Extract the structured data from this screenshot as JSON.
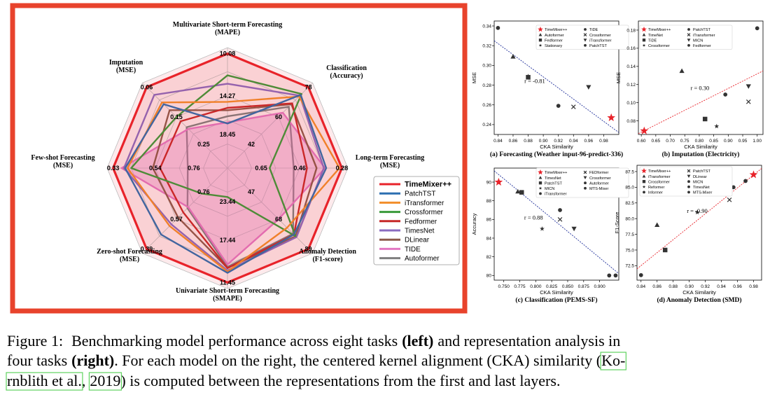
{
  "figure": {
    "caption": {
      "prefix": "Figure 1:",
      "part1": "Benchmarking model performance across eight tasks",
      "left": "(left)",
      "part2": "and representation analysis in",
      "part3": "four tasks",
      "right": "(right)",
      "part4": ". For each model on the right, the centered kernel alignment (CKA) similarity (",
      "cite1a": "Ko-",
      "cite1b": "rnblith et al.",
      "sep": ",",
      "cite2": "2019",
      "part5": ") is computed between the representations from the first and last layers."
    }
  },
  "colors": {
    "frame": "#e8432c",
    "timemixer": "#e8232a",
    "patchtst": "#2c6fb0",
    "itransformer": "#f28e2b",
    "crossformer": "#3a9a3a",
    "fedformer": "#c62828",
    "timesnet": "#8a6cc0",
    "dlinear": "#8c5a4a",
    "tide": "#e377c2",
    "autoformer": "#7f7f7f",
    "regression_blue": "#1f2f9a",
    "regression_red": "#e8232a"
  },
  "chart_data": [
    {
      "type": "radar",
      "axes": [
        {
          "label_lines": [
            "Multivariate Short-term Forecasting",
            "(MAPE)"
          ],
          "ticks": [
            "10.08",
            "14.27",
            "18.45"
          ]
        },
        {
          "label_lines": [
            "Classification",
            "(Accuracy)"
          ],
          "ticks": [
            "78",
            "60",
            "42"
          ]
        },
        {
          "label_lines": [
            "Long-term Forecasting",
            "(MSE)"
          ],
          "ticks": [
            "0.28",
            "0.46",
            "0.65"
          ]
        },
        {
          "label_lines": [
            "Anomaly Detection",
            "(F1-score)"
          ],
          "ticks": [
            "89",
            "68",
            "47"
          ]
        },
        {
          "label_lines": [
            "Univariate Short-term Forecasting",
            "(SMAPE)"
          ],
          "ticks": [
            "11.45",
            "17.44",
            "23.44"
          ]
        },
        {
          "label_lines": [
            "Zero-shot Forecasting",
            "(MSE)"
          ],
          "ticks": [
            "0.39",
            "0.57",
            "0.76"
          ]
        },
        {
          "label_lines": [
            "Few-shot Forecasting",
            "(MSE)"
          ],
          "ticks": [
            "0.33",
            "0.54",
            "0.76"
          ]
        },
        {
          "label_lines": [
            "Imputation",
            "(MSE)"
          ],
          "ticks": [
            "0.06",
            "0.15",
            "0.25"
          ]
        }
      ],
      "series": [
        {
          "name": "TimeMixer++",
          "color_key": "timemixer",
          "values": [
            0.95,
            0.95,
            0.95,
            0.95,
            0.95,
            0.95,
            0.95,
            0.95
          ]
        },
        {
          "name": "PatchTST",
          "color_key": "patchtst",
          "values": [
            0.37,
            0.86,
            0.82,
            0.78,
            0.87,
            0.78,
            0.85,
            0.75
          ]
        },
        {
          "name": "iTransformer",
          "color_key": "itransformer",
          "values": [
            0.55,
            0.84,
            0.93,
            0.7,
            0.86,
            0.68,
            0.83,
            0.77
          ]
        },
        {
          "name": "Crossformer",
          "color_key": "crossformer",
          "values": [
            0.77,
            0.87,
            0.35,
            0.8,
            0.24,
            0.3,
            0.8,
            0.6
          ]
        },
        {
          "name": "Fedformer",
          "color_key": "fedformer",
          "values": [
            0.5,
            0.76,
            0.66,
            0.78,
            0.83,
            0.52,
            0.56,
            0.55
          ]
        },
        {
          "name": "TimesNet",
          "color_key": "timesnet",
          "values": [
            0.7,
            0.85,
            0.8,
            0.81,
            0.85,
            0.66,
            0.86,
            0.86
          ]
        },
        {
          "name": "DLinear",
          "color_key": "dlinear",
          "values": [
            0.48,
            0.75,
            0.74,
            0.8,
            0.83,
            0.58,
            0.62,
            0.68
          ]
        },
        {
          "name": "TIDE",
          "color_key": "tide",
          "values": [
            0.38,
            0.65,
            0.81,
            0.6,
            0.8,
            0.46,
            0.88,
            0.46
          ]
        },
        {
          "name": "Autoformer",
          "color_key": "autoformer",
          "values": [
            0.43,
            0.72,
            0.55,
            0.77,
            0.82,
            0.47,
            0.33,
            0.48
          ]
        }
      ]
    },
    {
      "type": "scatter",
      "title": "(a) Forecasting (Weather input-96-predict-336)",
      "xlabel": "CKA Similarity",
      "ylabel": "MSE",
      "xlim": [
        0.835,
        1.0
      ],
      "ylim": [
        0.23,
        0.345
      ],
      "xticks": [
        "0.84",
        "0.86",
        "0.88",
        "0.90",
        "0.92",
        "0.94",
        "0.96",
        "0.98"
      ],
      "yticks": [
        "0.24",
        "0.26",
        "0.28",
        "0.30",
        "0.32",
        "0.34"
      ],
      "annotation": "r = -0.81",
      "legend": [
        "TimeMixer++",
        "Autoformer",
        "Fedformer",
        "Stationary",
        "TiDE",
        "Crossformer",
        "iTransformer",
        "PatchTST"
      ],
      "points": [
        {
          "marker": "star",
          "x": 0.99,
          "y": 0.247
        },
        {
          "marker": "circle",
          "x": 0.84,
          "y": 0.338
        },
        {
          "marker": "triangle",
          "x": 0.86,
          "y": 0.309
        },
        {
          "marker": "square",
          "x": 0.88,
          "y": 0.288
        },
        {
          "marker": "star6",
          "x": 0.88,
          "y": 0.289
        },
        {
          "marker": "circle",
          "x": 0.92,
          "y": 0.259
        },
        {
          "marker": "x",
          "x": 0.94,
          "y": 0.258
        },
        {
          "marker": "triangle_down",
          "x": 0.96,
          "y": 0.278
        }
      ],
      "line": [
        [
          0.835,
          0.325
        ],
        [
          1.0,
          0.232
        ]
      ],
      "line_color_key": "regression_blue"
    },
    {
      "type": "scatter",
      "title": "(b) Imputation (Electricity)",
      "xlabel": "CKA Similarity",
      "ylabel": "MSE",
      "xlim": [
        0.59,
        1.02
      ],
      "ylim": [
        0.065,
        0.19
      ],
      "xticks": [
        "0.60",
        "0.65",
        "0.70",
        "0.75",
        "0.80",
        "0.85",
        "0.90",
        "0.95",
        "1.00"
      ],
      "yticks": [
        "0.08",
        "0.10",
        "0.12",
        "0.14",
        "0.16",
        "0.18"
      ],
      "annotation": "r = 0.30",
      "legend": [
        "TimeMixer++",
        "TimeNet",
        "TiDE",
        "Crossformer",
        "PatchTST",
        "iTransformer",
        "MICN",
        "Fedformer"
      ],
      "points": [
        {
          "marker": "star",
          "x": 0.61,
          "y": 0.069
        },
        {
          "marker": "triangle",
          "x": 0.74,
          "y": 0.135
        },
        {
          "marker": "square",
          "x": 0.82,
          "y": 0.082
        },
        {
          "marker": "star6",
          "x": 0.86,
          "y": 0.074
        },
        {
          "marker": "circle",
          "x": 0.89,
          "y": 0.109
        },
        {
          "marker": "x",
          "x": 0.97,
          "y": 0.101
        },
        {
          "marker": "triangle_down",
          "x": 0.97,
          "y": 0.118
        },
        {
          "marker": "circle",
          "x": 1.0,
          "y": 0.182
        }
      ],
      "line": [
        [
          0.59,
          0.066
        ],
        [
          1.02,
          0.135
        ]
      ],
      "line_color_key": "regression_red"
    },
    {
      "type": "scatter",
      "title": "(c) Classification (PEMS-SF)",
      "xlabel": "CKA Similarity",
      "ylabel": "Accuracy",
      "xlim": [
        0.735,
        0.93
      ],
      "ylim": [
        79.5,
        91.5
      ],
      "xticks": [
        "0.750",
        "0.775",
        "0.800",
        "0.825",
        "0.850",
        "0.875",
        "0.900"
      ],
      "yticks": [
        "80",
        "82",
        "84",
        "86",
        "88",
        "90"
      ],
      "annotation": "r = 0.88",
      "legend": [
        "TimeMixer++",
        "TimesNet",
        "PatchTST",
        "MICN",
        "iTransformer",
        "FEDformer",
        "Crossformer",
        "Autoformer",
        "MTS-Mixer"
      ],
      "points": [
        {
          "marker": "star",
          "x": 0.742,
          "y": 90.0
        },
        {
          "marker": "triangle",
          "x": 0.772,
          "y": 89.0
        },
        {
          "marker": "square",
          "x": 0.778,
          "y": 88.9
        },
        {
          "marker": "star6",
          "x": 0.81,
          "y": 85.0
        },
        {
          "marker": "circle",
          "x": 0.838,
          "y": 87.0
        },
        {
          "marker": "x",
          "x": 0.838,
          "y": 86.0
        },
        {
          "marker": "triangle_down",
          "x": 0.86,
          "y": 85.0
        },
        {
          "marker": "circle",
          "x": 0.915,
          "y": 80.0
        },
        {
          "marker": "circle",
          "x": 0.925,
          "y": 80.0
        }
      ],
      "line": [
        [
          0.735,
          91.2
        ],
        [
          0.93,
          80.2
        ]
      ],
      "line_color_key": "regression_blue"
    },
    {
      "type": "scatter",
      "title": "(d) Anomaly Detection (SMD)",
      "xlabel": "CKA Similarity",
      "ylabel": "F1-Score",
      "xlim": [
        0.835,
        0.99
      ],
      "ylim": [
        70.2,
        88.5
      ],
      "xticks": [
        "0.84",
        "0.86",
        "0.88",
        "0.90",
        "0.92",
        "0.94",
        "0.96",
        "0.98"
      ],
      "yticks": [
        "72.5",
        "75.0",
        "77.5",
        "80.0",
        "82.5",
        "85.0",
        "87.5"
      ],
      "annotation": "r = -0.90",
      "legend": [
        "TimeMixer++",
        "iTransformer",
        "Crossformer",
        "Reformer",
        "Informer",
        "PatchTST",
        "DLinear",
        "MICN",
        "TimesNet",
        "MTS-Mixer"
      ],
      "points": [
        {
          "marker": "star",
          "x": 0.98,
          "y": 87.0
        },
        {
          "marker": "circle",
          "x": 0.84,
          "y": 71.0
        },
        {
          "marker": "triangle",
          "x": 0.86,
          "y": 79.0
        },
        {
          "marker": "square",
          "x": 0.87,
          "y": 75.0
        },
        {
          "marker": "star6",
          "x": 0.91,
          "y": 81.0
        },
        {
          "marker": "x",
          "x": 0.95,
          "y": 83.0
        },
        {
          "marker": "circle",
          "x": 0.95,
          "y": 84.0
        },
        {
          "marker": "triangle_down",
          "x": 0.95,
          "y": 86.0
        },
        {
          "marker": "circle",
          "x": 0.955,
          "y": 85.0
        },
        {
          "marker": "circle",
          "x": 0.97,
          "y": 86.0
        }
      ],
      "line": [
        [
          0.835,
          72.0
        ],
        [
          0.99,
          88.0
        ]
      ],
      "line_color_key": "regression_red"
    }
  ]
}
